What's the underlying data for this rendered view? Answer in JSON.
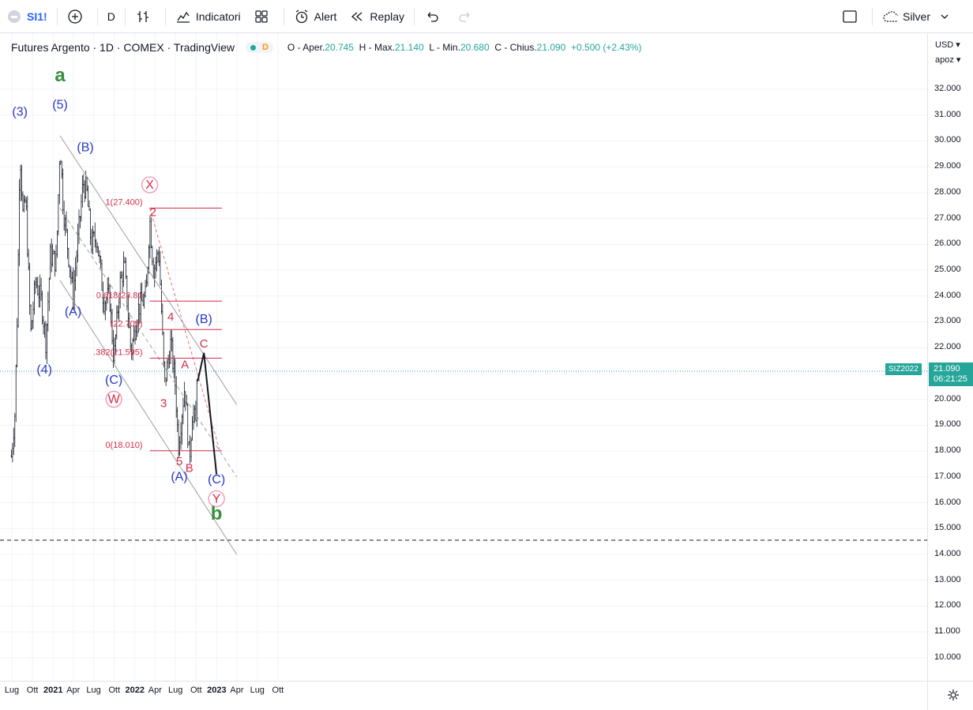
{
  "toolbar": {
    "symbol": "SI1!",
    "interval": "D",
    "indicators_label": "Indicatori",
    "alert_label": "Alert",
    "replay_label": "Replay",
    "layout_name": "Silver"
  },
  "legend": {
    "title": "Futures Argento · 1D · COMEX · TradingView",
    "status_mark": "D",
    "open_label": "O - Aper.",
    "open": "20.745",
    "high_label": "H - Max.",
    "high": "21.140",
    "low_label": "L - Min.",
    "low": "20.680",
    "close_label": "C - Chius.",
    "close": "21.090",
    "change": "+0.500 (+2.43%)"
  },
  "price_scale": {
    "currency": "USD",
    "mode": "apoz",
    "ticks": [
      "32.000",
      "31.000",
      "30.000",
      "29.000",
      "28.000",
      "27.000",
      "26.000",
      "25.000",
      "24.000",
      "23.000",
      "22.000",
      "21.000",
      "20.000",
      "19.000",
      "18.000",
      "17.000",
      "16.000",
      "15.000",
      "14.000",
      "13.000",
      "12.000",
      "11.000",
      "10.000"
    ],
    "last_price": "21.090",
    "countdown": "06:21:25",
    "series_tag": "SIZ2022"
  },
  "time_scale": {
    "labels": [
      "Lug",
      "Ott",
      "2021",
      "Apr",
      "Lug",
      "Ott",
      "2022",
      "Apr",
      "Lug",
      "Ott",
      "2023",
      "Apr",
      "Lug",
      "Ott"
    ]
  },
  "colors": {
    "up": "#26a69a",
    "candle": "#131722",
    "wave_blue": "#2836c6",
    "wave_red": "#d32f4a",
    "wave_green": "#388e3c",
    "fib": "#d32f4a",
    "channel": "#9e9e9e",
    "projection": "#131722"
  },
  "chart_data": {
    "type": "candlestick",
    "title": "Futures Argento · 1D · COMEX · TradingView",
    "ylim": [
      9.5,
      33.3
    ],
    "y_ticks": [
      10,
      11,
      12,
      13,
      14,
      15,
      16,
      17,
      18,
      19,
      20,
      21,
      22,
      23,
      24,
      25,
      26,
      27,
      28,
      29,
      30,
      31,
      32
    ],
    "x_range": [
      "2020-06-29",
      "2023-11-25"
    ],
    "price_path": [
      [
        "2020-06-29",
        17.8
      ],
      [
        "2020-07-15",
        19.5
      ],
      [
        "2020-07-27",
        24.0
      ],
      [
        "2020-08-06",
        29.8
      ],
      [
        "2020-08-20",
        27.0
      ],
      [
        "2020-09-01",
        27.8
      ],
      [
        "2020-09-23",
        22.5
      ],
      [
        "2020-10-15",
        24.6
      ],
      [
        "2020-11-10",
        23.8
      ],
      [
        "2020-11-30",
        22.2
      ],
      [
        "2020-12-20",
        25.6
      ],
      [
        "2021-01-15",
        25.3
      ],
      [
        "2021-02-01",
        30.0
      ],
      [
        "2021-02-15",
        27.5
      ],
      [
        "2021-03-31",
        24.0
      ],
      [
        "2021-04-20",
        26.0
      ],
      [
        "2021-05-15",
        28.4
      ],
      [
        "2021-06-01",
        28.0
      ],
      [
        "2021-06-20",
        26.0
      ],
      [
        "2021-07-15",
        26.3
      ],
      [
        "2021-08-15",
        23.8
      ],
      [
        "2021-09-10",
        24.0
      ],
      [
        "2021-09-29",
        21.5
      ],
      [
        "2021-10-25",
        24.4
      ],
      [
        "2021-11-15",
        25.2
      ],
      [
        "2021-12-15",
        21.8
      ],
      [
        "2022-01-15",
        23.5
      ],
      [
        "2022-02-20",
        24.0
      ],
      [
        "2022-03-08",
        27.0
      ],
      [
        "2022-03-25",
        25.0
      ],
      [
        "2022-04-18",
        25.8
      ],
      [
        "2022-05-13",
        20.5
      ],
      [
        "2022-06-10",
        22.2
      ],
      [
        "2022-07-01",
        20.5
      ],
      [
        "2022-07-14",
        18.2
      ],
      [
        "2022-08-12",
        20.6
      ],
      [
        "2022-09-01",
        17.6
      ],
      [
        "2022-09-15",
        19.6
      ],
      [
        "2022-09-30",
        19.0
      ],
      [
        "2022-10-05",
        21.09
      ]
    ],
    "fibonacci": [
      {
        "level": "1",
        "price": 27.4,
        "label": "1(27.400)"
      },
      {
        "level": "0.618",
        "price": 23.8,
        "label": "0.618(23.81"
      },
      {
        "level": "0.5",
        "price": 22.7,
        "label": "(22.705)"
      },
      {
        "level": "0.382",
        "price": 21.595,
        "label": ".382(21.595)"
      },
      {
        "level": "0",
        "price": 18.01,
        "label": "0(18.010)"
      }
    ],
    "horizontal_line": 14.55,
    "wave_labels": [
      {
        "text": "(3)",
        "color": "blue",
        "date": "2020-08-06",
        "price": 30.97
      },
      {
        "text": "(4)",
        "color": "blue",
        "date": "2020-11-23",
        "price": 21.0
      },
      {
        "text": "a",
        "color": "green",
        "date": "2021-02-01",
        "price": 32.3
      },
      {
        "text": "(5)",
        "color": "blue",
        "date": "2021-02-01",
        "price": 31.25
      },
      {
        "text": "(A)",
        "color": "blue",
        "date": "2021-03-31",
        "price": 23.25
      },
      {
        "text": "(B)",
        "color": "blue",
        "date": "2021-05-25",
        "price": 29.6
      },
      {
        "text": "(C)",
        "color": "blue",
        "date": "2021-09-29",
        "price": 20.6
      },
      {
        "text": "W",
        "color": "red",
        "circled": true,
        "date": "2021-09-29",
        "price": 19.85
      },
      {
        "text": "X",
        "color": "red",
        "circled": true,
        "date": "2022-03-08",
        "price": 28.15
      },
      {
        "text": "2",
        "color": "red",
        "date": "2022-03-23",
        "price": 27.1
      },
      {
        "text": "3",
        "color": "red",
        "date": "2022-05-09",
        "price": 19.7
      },
      {
        "text": "4",
        "color": "red",
        "date": "2022-06-10",
        "price": 23.05
      },
      {
        "text": "5",
        "color": "red",
        "date": "2022-07-18",
        "price": 17.45
      },
      {
        "text": "(A)",
        "color": "blue",
        "date": "2022-07-18",
        "price": 16.85
      },
      {
        "text": "A",
        "color": "red",
        "date": "2022-08-12",
        "price": 21.2
      },
      {
        "text": "B",
        "color": "red",
        "date": "2022-09-01",
        "price": 17.2
      },
      {
        "text": "(B)",
        "color": "blue",
        "date": "2022-11-05",
        "price": 22.95
      },
      {
        "text": "C",
        "color": "red",
        "date": "2022-11-05",
        "price": 22.0
      },
      {
        "text": "(C)",
        "color": "blue",
        "date": "2022-12-31",
        "price": 16.75
      },
      {
        "text": "Y",
        "color": "red",
        "circled": true,
        "date": "2022-12-31",
        "price": 16.0
      },
      {
        "text": "b",
        "color": "green",
        "date": "2022-12-31",
        "price": 15.35
      }
    ],
    "channel": [
      {
        "from": [
          "2021-02-01",
          30.2
        ],
        "to": [
          "2023-03-31",
          19.8
        ]
      },
      {
        "from": [
          "2021-02-01",
          24.6
        ],
        "to": [
          "2023-03-31",
          14.0
        ]
      }
    ],
    "channel_mid": {
      "from": [
        "2021-02-01",
        27.4
      ],
      "to": [
        "2023-03-31",
        17.0
      ]
    },
    "red_trendline": {
      "from": [
        "2022-03-08",
        27.4
      ],
      "to": [
        "2023-01-15",
        18.0
      ]
    },
    "projection": [
      [
        "2022-10-08",
        20.7
      ],
      [
        "2022-11-05",
        21.8
      ],
      [
        "2022-12-31",
        17.1
      ]
    ]
  }
}
